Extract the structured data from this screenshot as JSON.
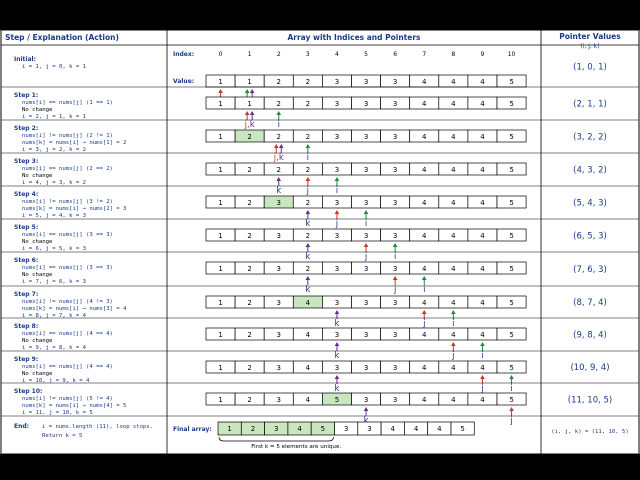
{
  "headers": {
    "left": "Step / Explanation (Action)",
    "middle": "Array with Indices and Pointers",
    "right_title": "Pointer Values",
    "right_sub": "(i, j, k)"
  },
  "index_label": "Index:",
  "value_label": "Value:",
  "indices": [
    "0",
    "1",
    "2",
    "3",
    "4",
    "5",
    "6",
    "7",
    "8",
    "9",
    "10"
  ],
  "ptr_names": {
    "i": "i",
    "j": "j",
    "k": "k"
  },
  "colors": {
    "i": "#1a8c3a",
    "j": "#c0392b",
    "k": "#6a2c91",
    "highlight": "#c9e6c0",
    "text": "#1a3a8c"
  },
  "steps": [
    {
      "title": "Initial:",
      "lines": [
        {
          "text": "i = 1,  j = 0,  k = 1",
          "tone": "blue"
        }
      ],
      "values": [
        "1",
        "1",
        "2",
        "2",
        "3",
        "3",
        "3",
        "4",
        "4",
        "4",
        "5"
      ],
      "highlight": [],
      "i": 1,
      "j": 0,
      "k": 1,
      "pv": "(1,  0,  1)"
    },
    {
      "title": "Step 1:",
      "lines": [
        {
          "text": "nums[i] == nums[j]   (1 == 1)",
          "tone": "blue"
        },
        {
          "text": "No change",
          "tone": "black"
        },
        {
          "text": "i = 2,  j = 1,  k = 1",
          "tone": "blue"
        }
      ],
      "values": [
        "1",
        "1",
        "2",
        "2",
        "3",
        "3",
        "3",
        "4",
        "4",
        "4",
        "5"
      ],
      "highlight": [],
      "i": 2,
      "j": 1,
      "k": 1,
      "pv": "(2,  1,  1)"
    },
    {
      "title": "Step 2:",
      "lines": [
        {
          "text": "nums[i] != nums[j]   (2 != 1)",
          "tone": "blue"
        },
        {
          "text": "nums[k] = nums[i]  →  nums[1] = 2",
          "tone": "blue"
        },
        {
          "text": "i = 3,  j = 2,  k = 2",
          "tone": "blue"
        }
      ],
      "values": [
        "1",
        "2",
        "2",
        "2",
        "3",
        "3",
        "3",
        "4",
        "4",
        "4",
        "5"
      ],
      "highlight": [
        1
      ],
      "i": 3,
      "j": 2,
      "k": 2,
      "pv": "(3,  2,  2)"
    },
    {
      "title": "Step 3:",
      "lines": [
        {
          "text": "nums[i] == nums[j]   (2 == 2)",
          "tone": "blue"
        },
        {
          "text": "No change",
          "tone": "black"
        },
        {
          "text": "i = 4,  j = 3,  k = 2",
          "tone": "blue"
        }
      ],
      "values": [
        "1",
        "2",
        "2",
        "2",
        "3",
        "3",
        "3",
        "4",
        "4",
        "4",
        "5"
      ],
      "highlight": [],
      "i": 4,
      "j": 3,
      "k": 2,
      "pv": "(4,  3,  2)"
    },
    {
      "title": "Step 4:",
      "lines": [
        {
          "text": "nums[i] != nums[j]   (3 != 2)",
          "tone": "blue"
        },
        {
          "text": "nums[k] = nums[i]  →  nums[2] = 3",
          "tone": "blue"
        },
        {
          "text": "i = 5,  j = 4,  k = 3",
          "tone": "blue"
        }
      ],
      "values": [
        "1",
        "2",
        "3",
        "2",
        "3",
        "3",
        "3",
        "4",
        "4",
        "4",
        "5"
      ],
      "highlight": [
        2
      ],
      "i": 5,
      "j": 4,
      "k": 3,
      "pv": "(5,  4,  3)"
    },
    {
      "title": "Step 5:",
      "lines": [
        {
          "text": "nums[i] == nums[j]   (3 == 3)",
          "tone": "blue"
        },
        {
          "text": "No change",
          "tone": "black"
        },
        {
          "text": "i = 6,  j = 5,  k = 3",
          "tone": "blue"
        }
      ],
      "values": [
        "1",
        "2",
        "3",
        "2",
        "3",
        "3",
        "3",
        "4",
        "4",
        "4",
        "5"
      ],
      "highlight": [],
      "i": 6,
      "j": 5,
      "k": 3,
      "pv": "(6,  5,  3)"
    },
    {
      "title": "Step 6:",
      "lines": [
        {
          "text": "nums[i] == nums[j]   (3 == 3)",
          "tone": "blue"
        },
        {
          "text": "No change",
          "tone": "black"
        },
        {
          "text": "i = 7,  j = 6,  k = 3",
          "tone": "blue"
        }
      ],
      "values": [
        "1",
        "2",
        "3",
        "2",
        "3",
        "3",
        "3",
        "4",
        "4",
        "4",
        "5"
      ],
      "highlight": [],
      "i": 7,
      "j": 6,
      "k": 3,
      "pv": "(7,  6,  3)"
    },
    {
      "title": "Step 7:",
      "lines": [
        {
          "text": "nums[i] != nums[j]   (4 != 3)",
          "tone": "blue"
        },
        {
          "text": "nums[k] = nums[i]  →  nums[3] = 4",
          "tone": "blue"
        },
        {
          "text": "i = 8,  j = 7,  k = 4",
          "tone": "blue"
        }
      ],
      "values": [
        "1",
        "2",
        "3",
        "4",
        "3",
        "3",
        "3",
        "4",
        "4",
        "4",
        "5"
      ],
      "highlight": [
        3
      ],
      "i": 8,
      "j": 7,
      "k": 4,
      "pv": "(8,  7,  4)"
    },
    {
      "title": "Step 8:",
      "lines": [
        {
          "text": "nums[i] == nums[j]   (4 == 4)",
          "tone": "blue"
        },
        {
          "text": "No change",
          "tone": "black"
        },
        {
          "text": "i = 9,  j = 8,  k = 4",
          "tone": "blue"
        }
      ],
      "values": [
        "1",
        "2",
        "3",
        "4",
        "3",
        "3",
        "3",
        "4",
        "4",
        "4",
        "5"
      ],
      "highlight": [],
      "i": 9,
      "j": 8,
      "k": 4,
      "pv": "(9,  8,  4)"
    },
    {
      "title": "Step 9:",
      "lines": [
        {
          "text": "nums[i] == nums[j]   (4 == 4)",
          "tone": "blue"
        },
        {
          "text": "No change",
          "tone": "black"
        },
        {
          "text": "i = 10,  j = 9,  k = 4",
          "tone": "blue"
        }
      ],
      "values": [
        "1",
        "2",
        "3",
        "4",
        "3",
        "3",
        "3",
        "4",
        "4",
        "4",
        "5"
      ],
      "highlight": [],
      "i": 10,
      "j": 9,
      "k": 4,
      "pv": "(10,  9,  4)"
    },
    {
      "title": "Step 10:",
      "lines": [
        {
          "text": "nums[i] != nums[j]   (5 != 4)",
          "tone": "blue"
        },
        {
          "text": "nums[k] = nums[i]  →  nums[4] = 5",
          "tone": "blue"
        },
        {
          "text": "i = 11,  j = 10,  k = 5",
          "tone": "blue"
        }
      ],
      "values": [
        "1",
        "2",
        "3",
        "4",
        "5",
        "3",
        "3",
        "4",
        "4",
        "4",
        "5"
      ],
      "highlight": [
        4
      ],
      "i": 11,
      "j": 10,
      "k": 5,
      "pv": "(11,  10,  5)"
    }
  ],
  "end": {
    "title": "End:",
    "line1": "i = nums.length (11), loop stops.",
    "line2": "Return  k = 5",
    "final_label": "Final array:",
    "final_values": [
      "1",
      "2",
      "3",
      "4",
      "5",
      "3",
      "3",
      "4",
      "4",
      "4",
      "5"
    ],
    "unique_count": 5,
    "note": "First  k = 5  elements are unique.",
    "result": "(i,  j,  k) = (11, 10, 5)"
  }
}
